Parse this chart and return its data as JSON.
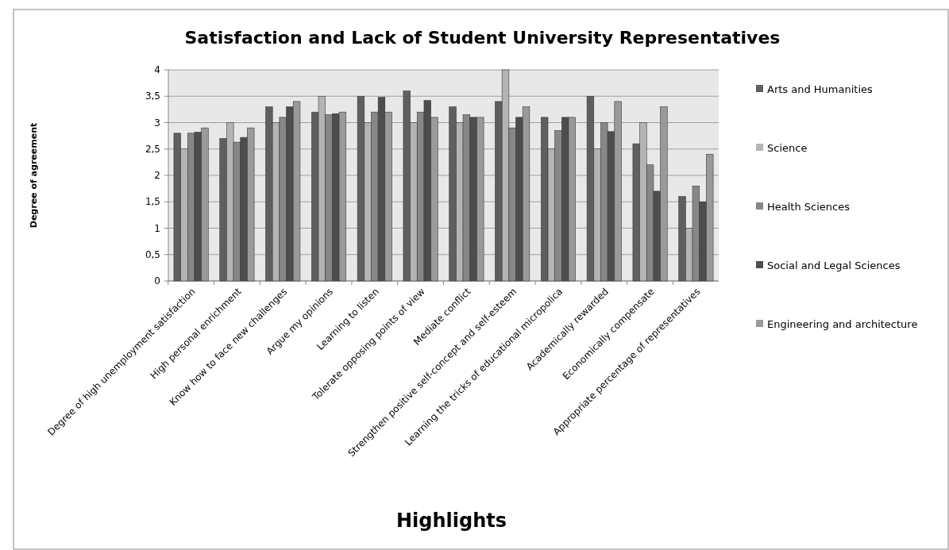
{
  "chart_data": {
    "type": "bar",
    "title": "Satisfaction and Lack of Student University Representatives",
    "xlabel": "Highlights",
    "ylabel": "Degree of agreement",
    "categories": [
      "Degree of high unemployment satisfaction",
      "High personal enrichment",
      "Know how to face new challenges",
      "Argue my opinions",
      "Learning to listen",
      "Tolerate opposing points of view",
      "Mediate conflict",
      "Strengthen positive self-concept and self-esteem",
      "Learning the tricks of educational micropolica",
      "Academically rewarded",
      "Economically compensate",
      "Appropriate percentage of representatives"
    ],
    "series": [
      {
        "name": "Arts and Humanities",
        "color": "#5f5f5f",
        "values": [
          2.8,
          2.7,
          3.3,
          3.2,
          3.5,
          3.6,
          3.3,
          3.4,
          3.1,
          3.5,
          2.6,
          1.6
        ]
      },
      {
        "name": "Science",
        "color": "#b4b4b4",
        "values": [
          2.5,
          3.0,
          3.0,
          3.5,
          3.0,
          3.0,
          3.0,
          4.0,
          2.5,
          2.5,
          3.0,
          1.0
        ]
      },
      {
        "name": "Health Sciences",
        "color": "#878787",
        "values": [
          2.8,
          2.63,
          3.1,
          3.15,
          3.2,
          3.2,
          3.15,
          2.9,
          2.85,
          3.0,
          2.2,
          1.8
        ]
      },
      {
        "name": "Social and Legal Sciences",
        "color": "#4d4d4d",
        "values": [
          2.82,
          2.72,
          3.3,
          3.17,
          3.48,
          3.42,
          3.1,
          3.1,
          3.1,
          2.83,
          1.7,
          1.5
        ]
      },
      {
        "name": "Engineering and architecture",
        "color": "#9a9a9a",
        "values": [
          2.9,
          2.9,
          3.4,
          3.2,
          3.2,
          3.1,
          3.1,
          3.3,
          3.1,
          3.4,
          3.3,
          2.4
        ]
      }
    ],
    "ylim": [
      0,
      4
    ],
    "yticks": [
      0,
      {
        "value": 0.5,
        "label": "0,5"
      },
      1,
      {
        "value": 1.5,
        "label": "1,5"
      },
      2,
      {
        "value": 2.5,
        "label": "2,5"
      },
      3,
      {
        "value": 3.5,
        "label": "3,5"
      },
      4
    ],
    "grid": "y",
    "legend": "right"
  }
}
